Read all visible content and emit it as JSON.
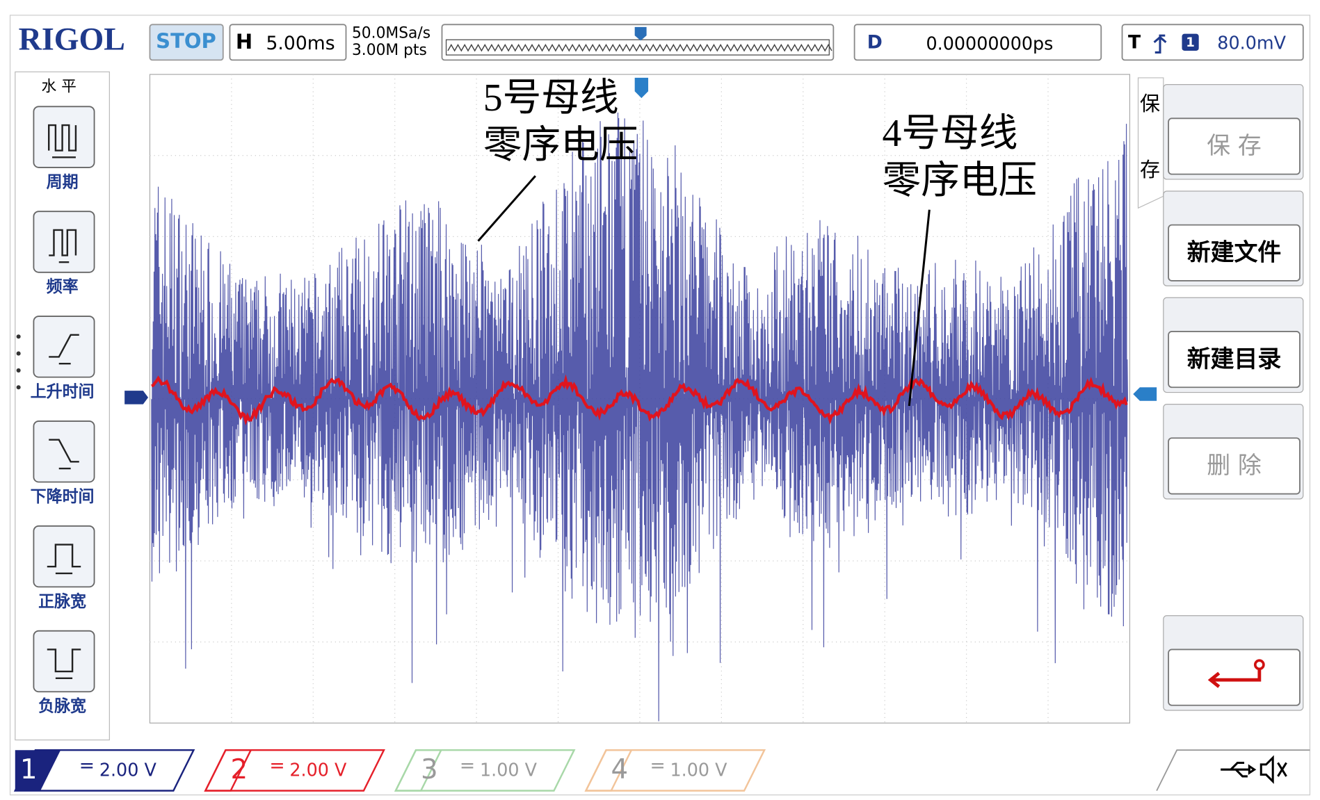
{
  "header": {
    "brand": "RIGOL",
    "status": "STOP",
    "horizontal": {
      "label": "H",
      "timebase": "5.00ms"
    },
    "sample_rate": "50.0MSa/s",
    "memory_depth": "3.00M pts",
    "delay": {
      "label": "D",
      "value": "0.00000000ps"
    },
    "trigger": {
      "label": "T",
      "source": "1",
      "level": "80.0mV"
    }
  },
  "left_menu": {
    "title": "水 平",
    "items": [
      "周期",
      "频率",
      "上升时间",
      "下降时间",
      "正脉宽",
      "负脉宽"
    ]
  },
  "right_menu": {
    "tab": [
      "保",
      "存"
    ],
    "buttons": [
      "保 存",
      "新建文件",
      "新建目录",
      "删 除"
    ]
  },
  "annotations": [
    {
      "lines": [
        "5号母线",
        "零序电压"
      ]
    },
    {
      "lines": [
        "4号母线",
        "零序电压"
      ]
    }
  ],
  "channels": [
    {
      "number": "1",
      "coupling": "=",
      "scale": "2.00 V"
    },
    {
      "number": "2",
      "coupling": "=",
      "scale": "2.00 V"
    },
    {
      "number": "3",
      "coupling": "=",
      "scale": "1.00 V"
    },
    {
      "number": "4",
      "coupling": "=",
      "scale": "1.00 V"
    }
  ]
}
